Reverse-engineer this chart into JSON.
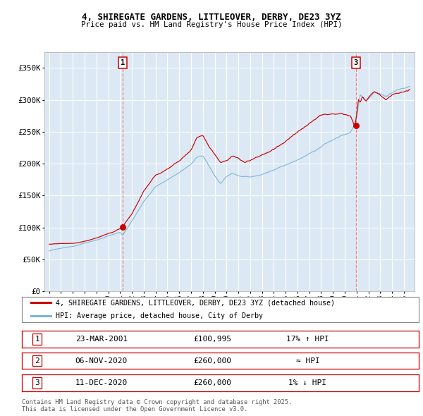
{
  "title1": "4, SHIREGATE GARDENS, LITTLEOVER, DERBY, DE23 3YZ",
  "title2": "Price paid vs. HM Land Registry's House Price Index (HPI)",
  "ytick_vals": [
    0,
    50000,
    100000,
    150000,
    200000,
    250000,
    300000,
    350000
  ],
  "ytick_labels": [
    "£0",
    "£50K",
    "£100K",
    "£150K",
    "£200K",
    "£250K",
    "£300K",
    "£350K"
  ],
  "xmin": 1994.6,
  "xmax": 2025.9,
  "ymin": 0,
  "ymax": 375000,
  "sale_years": [
    2001.22,
    2020.84,
    2020.94
  ],
  "sale_prices": [
    100995,
    260000,
    260000
  ],
  "sale_labels": [
    "1",
    "2",
    "3"
  ],
  "sale_dates": [
    "23-MAR-2001",
    "06-NOV-2020",
    "11-DEC-2020"
  ],
  "sale_prices_str": [
    "£100,995",
    "£260,000",
    "£260,000"
  ],
  "sale_notes": [
    "17% ↑ HPI",
    "≈ HPI",
    "1% ↓ HPI"
  ],
  "legend_line1": "4, SHIREGATE GARDENS, LITTLEOVER, DERBY, DE23 3YZ (detached house)",
  "legend_line2": "HPI: Average price, detached house, City of Derby",
  "footnote": "Contains HM Land Registry data © Crown copyright and database right 2025.\nThis data is licensed under the Open Government Licence v3.0.",
  "hpi_color": "#7ab3d4",
  "price_color": "#cc0000",
  "vline_color": "#e87070",
  "bg_color": "#dce9f5",
  "grid_color": "#ffffff"
}
